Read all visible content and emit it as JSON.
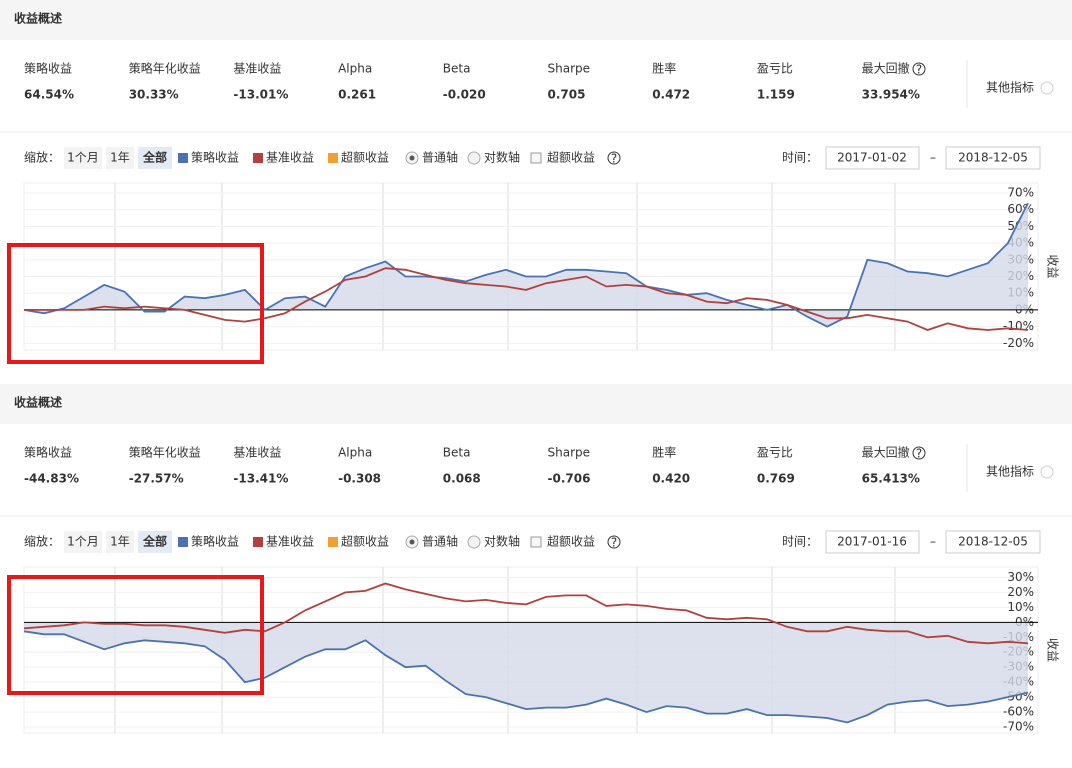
{
  "panels": [
    {
      "title": "收益概述",
      "metrics": [
        {
          "label": "策略收益",
          "value": "64.54%",
          "color": "#e8474c"
        },
        {
          "label": "策略年化收益",
          "value": "30.33%",
          "color": "#e8474c"
        },
        {
          "label": "基准收益",
          "value": "-13.01%",
          "color": "#3aa55c"
        },
        {
          "label": "Alpha",
          "value": "0.261"
        },
        {
          "label": "Beta",
          "value": "-0.020"
        },
        {
          "label": "Sharpe",
          "value": "0.705"
        },
        {
          "label": "胜率",
          "value": "0.472"
        },
        {
          "label": "盈亏比",
          "value": "1.159"
        },
        {
          "label": "最大回撤",
          "value": "33.954%"
        }
      ],
      "other_metrics": "其他指标",
      "zoom_label": "缩放：",
      "zoom_options": [
        "1个月",
        "1年",
        "全部"
      ],
      "zoom_selected": 2,
      "excess_legend": {
        "name": "超额收益",
        "color": "#f0a030"
      },
      "axis_options": [
        "普通轴",
        "对数轴"
      ],
      "axis_selected": 0,
      "excess_checkbox": "超额收益",
      "time_label": "时间：",
      "start_date": "2017-01-02",
      "date_separator": "–",
      "end_date": "2018-12-05"
    },
    {
      "title": "收益概述",
      "metrics": [
        {
          "label": "策略收益",
          "value": "-44.83%",
          "color": "#3aa55c"
        },
        {
          "label": "策略年化收益",
          "value": "-27.57%",
          "color": "#3aa55c"
        },
        {
          "label": "基准收益",
          "value": "-13.41%",
          "color": "#3aa55c"
        },
        {
          "label": "Alpha",
          "value": "-0.308"
        },
        {
          "label": "Beta",
          "value": "0.068"
        },
        {
          "label": "Sharpe",
          "value": "-0.706"
        },
        {
          "label": "胜率",
          "value": "0.420"
        },
        {
          "label": "盈亏比",
          "value": "0.769"
        },
        {
          "label": "最大回撤",
          "value": "65.413%"
        }
      ],
      "other_metrics": "其他指标",
      "zoom_label": "缩放：",
      "zoom_options": [
        "1个月",
        "1年",
        "全部"
      ],
      "zoom_selected": 2,
      "excess_legend": {
        "name": "超额收益",
        "color": "#f0a030"
      },
      "axis_options": [
        "普通轴",
        "对数轴"
      ],
      "axis_selected": 0,
      "excess_checkbox": "超额收益",
      "time_label": "时间：",
      "start_date": "2017-01-16",
      "date_separator": "–",
      "end_date": "2018-12-05"
    }
  ],
  "chart_data": [
    {
      "type": "line",
      "y_label": "收益",
      "ylim": [
        -24,
        76
      ],
      "yticks": [
        {
          "value": 70,
          "label": "70%"
        },
        {
          "value": 60,
          "label": "60%"
        },
        {
          "value": 50,
          "label": "50%"
        },
        {
          "value": 40,
          "label": "40%"
        },
        {
          "value": 30,
          "label": "30%"
        },
        {
          "value": 20,
          "label": "20%"
        },
        {
          "value": 10,
          "label": "10%"
        },
        {
          "value": 0,
          "label": "0%"
        },
        {
          "value": -10,
          "label": "-10%"
        },
        {
          "value": -20,
          "label": "-20%"
        }
      ],
      "series": [
        {
          "name": "策略收益",
          "color": "#4a72b0",
          "values": [
            0,
            -2,
            1,
            8,
            15,
            11,
            -1,
            -1,
            8,
            7,
            9,
            12,
            0,
            7,
            8,
            2,
            20,
            25,
            29,
            20,
            20,
            19,
            17,
            21,
            24,
            20,
            20,
            24,
            24,
            23,
            22,
            14,
            12,
            9,
            10,
            6,
            3,
            0,
            3,
            -4,
            -10,
            -4,
            30,
            28,
            23,
            22,
            20,
            24,
            28,
            40,
            64
          ]
        },
        {
          "name": "基准收益",
          "color": "#b0413e",
          "values": [
            0,
            0,
            0,
            0,
            2,
            1,
            2,
            1,
            0,
            -3,
            -6,
            -7,
            -5,
            -2,
            5,
            11,
            18,
            20,
            25,
            24,
            21,
            18,
            16,
            15,
            14,
            12,
            16,
            18,
            20,
            14,
            15,
            14,
            10,
            9,
            5,
            4,
            7,
            6,
            3,
            -1,
            -5,
            -5,
            -3,
            -5,
            -7,
            -12,
            -8,
            -11,
            -12,
            -11,
            -12
          ]
        }
      ]
    },
    {
      "type": "line",
      "y_label": "收益",
      "ylim": [
        -74,
        37
      ],
      "yticks": [
        {
          "value": 30,
          "label": "30%"
        },
        {
          "value": 20,
          "label": "20%"
        },
        {
          "value": 10,
          "label": "10%"
        },
        {
          "value": 0,
          "label": "0%"
        },
        {
          "value": -10,
          "label": "-10%"
        },
        {
          "value": -20,
          "label": "-20%"
        },
        {
          "value": -30,
          "label": "-30%"
        },
        {
          "value": -40,
          "label": "-40%"
        },
        {
          "value": -50,
          "label": "-50%"
        },
        {
          "value": -60,
          "label": "-60%"
        },
        {
          "value": -70,
          "label": "-70%"
        }
      ],
      "series": [
        {
          "name": "策略收益",
          "color": "#4a72b0",
          "values": [
            -6,
            -8,
            -8,
            -13,
            -18,
            -14,
            -12,
            -13,
            -14,
            -16,
            -25,
            -40,
            -37,
            -30,
            -23,
            -18,
            -18,
            -12,
            -22,
            -30,
            -29,
            -39,
            -48,
            -50,
            -54,
            -58,
            -57,
            -57,
            -55,
            -51,
            -55,
            -60,
            -56,
            -57,
            -61,
            -61,
            -58,
            -62,
            -62,
            -63,
            -64,
            -67,
            -62,
            -55,
            -53,
            -52,
            -56,
            -55,
            -53,
            -50,
            -47
          ]
        },
        {
          "name": "基准收益",
          "color": "#b0413e",
          "values": [
            -4,
            -3,
            -2,
            0,
            -1,
            -1,
            -2,
            -2,
            -3,
            -5,
            -7,
            -5,
            -6,
            0,
            8,
            14,
            20,
            21,
            26,
            22,
            19,
            16,
            14,
            15,
            13,
            12,
            17,
            18,
            18,
            11,
            12,
            11,
            9,
            8,
            3,
            2,
            3,
            2,
            -3,
            -6,
            -6,
            -3,
            -5,
            -6,
            -6,
            -10,
            -9,
            -13,
            -14,
            -13,
            -14
          ]
        }
      ]
    }
  ]
}
